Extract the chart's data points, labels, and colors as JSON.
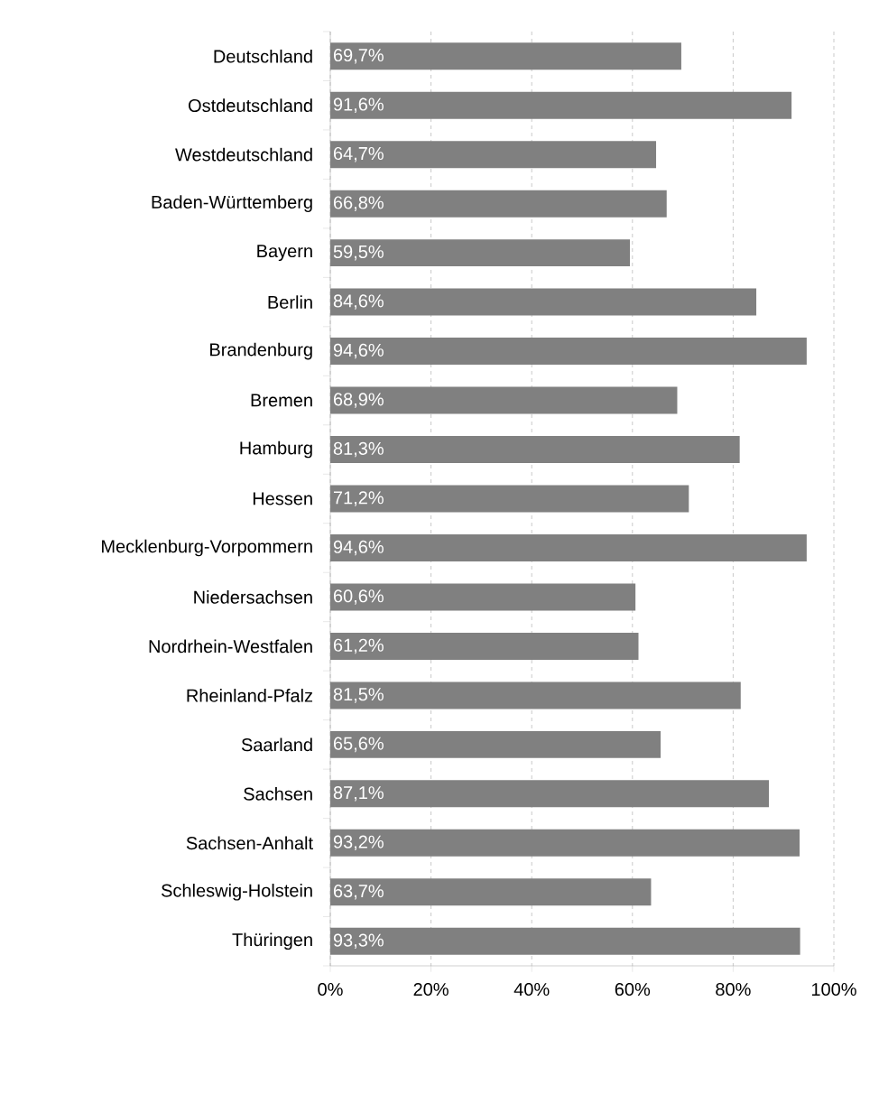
{
  "chart_data": {
    "type": "bar",
    "orientation": "horizontal",
    "categories": [
      "Deutschland",
      "Ostdeutschland",
      "Westdeutschland",
      "Baden-Württemberg",
      "Bayern",
      "Berlin",
      "Brandenburg",
      "Bremen",
      "Hamburg",
      "Hessen",
      "Mecklenburg-Vorpommern",
      "Niedersachsen",
      "Nordrhein-Westfalen",
      "Rheinland-Pfalz",
      "Saarland",
      "Sachsen",
      "Sachsen-Anhalt",
      "Schleswig-Holstein",
      "Thüringen"
    ],
    "values": [
      69.7,
      91.6,
      64.7,
      66.8,
      59.5,
      84.6,
      94.6,
      68.9,
      81.3,
      71.2,
      94.6,
      60.6,
      61.2,
      81.5,
      65.6,
      87.1,
      93.2,
      63.7,
      93.3
    ],
    "value_labels": [
      "69,7%",
      "91,6%",
      "64,7%",
      "66,8%",
      "59,5%",
      "84,6%",
      "94,6%",
      "68,9%",
      "81,3%",
      "71,2%",
      "94,6%",
      "60,6%",
      "61,2%",
      "81,5%",
      "65,6%",
      "87,1%",
      "93,2%",
      "63,7%",
      "93,3%"
    ],
    "color": "#808080",
    "xlim": [
      0,
      100
    ],
    "xticks": [
      {
        "value": 0,
        "label": "0%"
      },
      {
        "value": 20,
        "label": "20%"
      },
      {
        "value": 40,
        "label": "40%"
      },
      {
        "value": 60,
        "label": "60%"
      },
      {
        "value": 80,
        "label": "80%"
      },
      {
        "value": 100,
        "label": "100%"
      }
    ],
    "grid": "x"
  }
}
